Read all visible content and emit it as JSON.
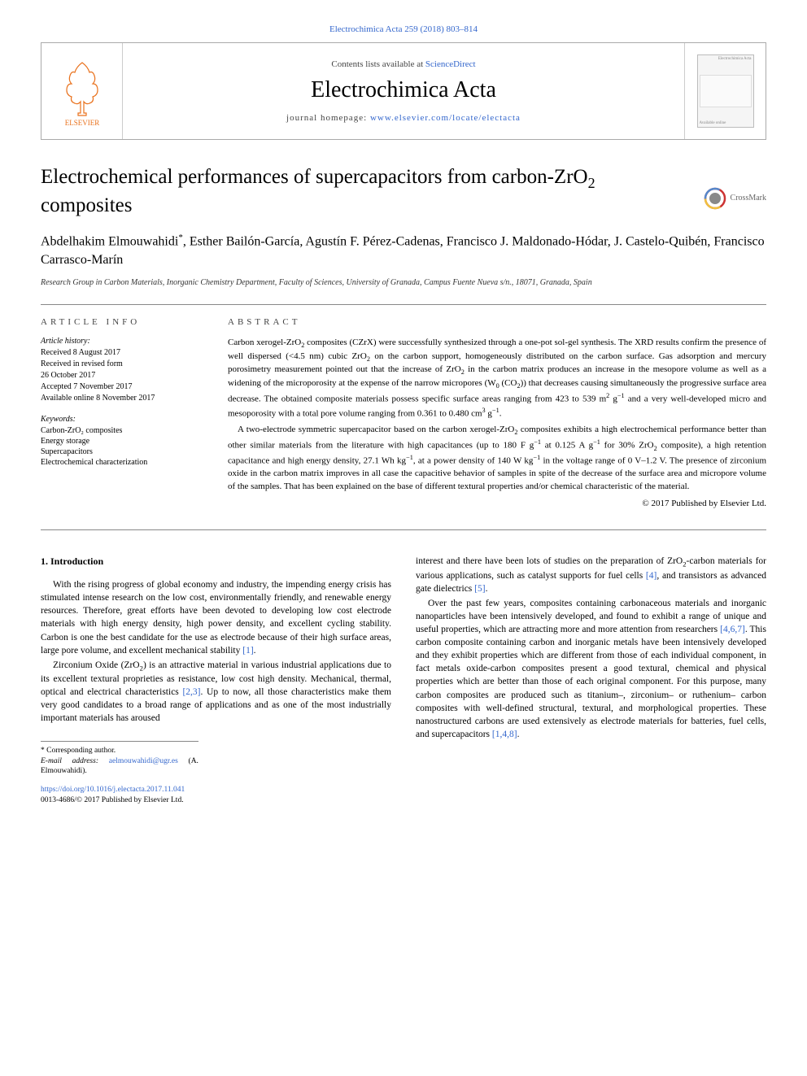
{
  "citation": "Electrochimica Acta 259 (2018) 803–814",
  "header": {
    "contents_prefix": "Contents lists available at ",
    "contents_link": "ScienceDirect",
    "journal_name": "Electrochimica Acta",
    "homepage_prefix": "journal homepage: ",
    "homepage_link": "www.elsevier.com/locate/electacta",
    "publisher": "ELSEVIER",
    "cover_top": "Electrochimica Acta",
    "cover_bottom": "Available online"
  },
  "crossmark": "CrossMark",
  "title_html": "Electrochemical performances of supercapacitors from carbon-ZrO<sub>2</sub> composites",
  "authors_html": "Abdelhakim Elmouwahidi<sup>*</sup>, Esther Bailón-García, Agustín F. Pérez-Cadenas, Francisco J. Maldonado-Hódar, J. Castelo-Quibén, Francisco Carrasco-Marín",
  "affiliation": "Research Group in Carbon Materials, Inorganic Chemistry Department, Faculty of Sciences, University of Granada, Campus Fuente Nueva s/n., 18071, Granada, Spain",
  "info": {
    "heading": "article info",
    "history_label": "Article history:",
    "history": [
      "Received 8 August 2017",
      "Received in revised form",
      "26 October 2017",
      "Accepted 7 November 2017",
      "Available online 8 November 2017"
    ],
    "keywords_label": "Keywords:",
    "keywords": [
      "Carbon-ZrO₂ composites",
      "Energy storage",
      "Supercapacitors",
      "Electrochemical characterization"
    ]
  },
  "abstract": {
    "heading": "abstract",
    "p1_html": "Carbon xerogel-ZrO<sub>2</sub> composites (CZrX) were successfully synthesized through a one-pot sol-gel synthesis. The XRD results confirm the presence of well dispersed (<4.5 nm) cubic ZrO<sub>2</sub> on the carbon support, homogeneously distributed on the carbon surface. Gas adsorption and mercury porosimetry measurement pointed out that the increase of ZrO<sub>2</sub> in the carbon matrix produces an increase in the mesopore volume as well as a widening of the microporosity at the expense of the narrow micropores (W<sub>0</sub> (CO<sub>2</sub>)) that decreases causing simultaneously the progressive surface area decrease. The obtained composite materials possess specific surface areas ranging from 423 to 539 m<sup>2</sup> g<sup>−1</sup> and a very well-developed micro and mesoporosity with a total pore volume ranging from 0.361 to 0.480 cm<sup>3</sup> g<sup>−1</sup>.",
    "p2_html": "A two-electrode symmetric supercapacitor based on the carbon xerogel-ZrO<sub>2</sub> composites exhibits a high electrochemical performance better than other similar materials from the literature with high capacitances (up to 180 F g<sup>−1</sup> at 0.125 A g<sup>−1</sup> for 30% ZrO<sub>2</sub> composite), a high retention capacitance and high energy density, 27.1 Wh kg<sup>−1</sup>, at a power density of 140 W kg<sup>−1</sup> in the voltage range of 0 V–1.2 V. The presence of zirconium oxide in the carbon matrix improves in all case the capacitive behavior of samples in spite of the decrease of the surface area and micropore volume of the samples. That has been explained on the base of different textural properties and/or chemical characteristic of the material.",
    "copyright": "© 2017 Published by Elsevier Ltd."
  },
  "body": {
    "section_heading": "1. Introduction",
    "left_p1_html": "With the rising progress of global economy and industry, the impending energy crisis has stimulated intense research on the low cost, environmentally friendly, and renewable energy resources. Therefore, great efforts have been devoted to developing low cost electrode materials with high energy density, high power density, and excellent cycling stability. Carbon is one the best candidate for the use as electrode because of their high surface areas, large pore volume, and excellent mechanical stability <a class=\"ref\" href=\"#\">[1]</a>.",
    "left_p2_html": "Zirconium Oxide (ZrO<sub>2</sub>) is an attractive material in various industrial applications due to its excellent textural proprieties as resistance, low cost high density. Mechanical, thermal, optical and electrical characteristics <a class=\"ref\" href=\"#\">[2,3]</a>. Up to now, all those characteristics make them very good candidates to a broad range of applications and as one of the most industrially important materials has aroused",
    "right_p1_html": "interest and there have been lots of studies on the preparation of ZrO<sub>2</sub>-carbon materials for various applications, such as catalyst supports for fuel cells <a class=\"ref\" href=\"#\">[4]</a>, and transistors as advanced gate dielectrics <a class=\"ref\" href=\"#\">[5]</a>.",
    "right_p2_html": "Over the past few years, composites containing carbonaceous materials and inorganic nanoparticles have been intensively developed, and found to exhibit a range of unique and useful properties, which are attracting more and more attention from researchers <a class=\"ref\" href=\"#\">[4,6,7]</a>. This carbon composite containing carbon and inorganic metals have been intensively developed and they exhibit properties which are different from those of each individual component, in fact metals oxide-carbon composites present a good textural, chemical and physical properties which are better than those of each original component. For this purpose, many carbon composites are produced such as titanium–, zirconium– or ruthenium– carbon composites with well-defined structural, textural, and morphological properties. These nanostructured carbons are used extensively as electrode materials for batteries, fuel cells, and supercapacitors <a class=\"ref\" href=\"#\">[1,4,8]</a>."
  },
  "footnotes": {
    "corresponding": "* Corresponding author.",
    "email_label": "E-mail address: ",
    "email": "aelmouwahidi@ugr.es",
    "email_person": " (A. Elmouwahidi)."
  },
  "doi": {
    "url": "https://doi.org/10.1016/j.electacta.2017.11.041",
    "issn_line": "0013-4686/© 2017 Published by Elsevier Ltd."
  },
  "colors": {
    "link": "#3366cc",
    "text": "#000000",
    "border": "#888888",
    "elsevier_orange": "#e9711c",
    "crossmark_ring": "#cc3333"
  }
}
